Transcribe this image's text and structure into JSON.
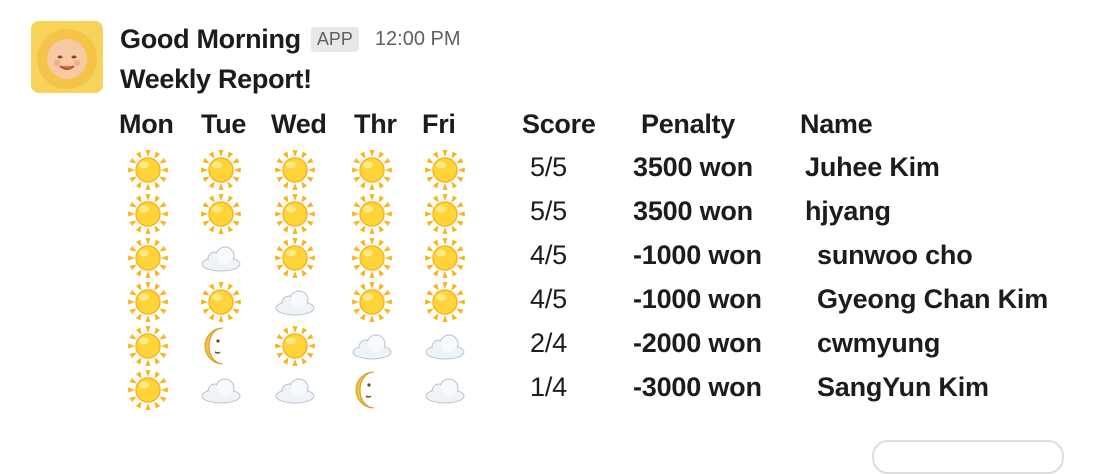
{
  "message": {
    "sender": "Good Morning",
    "badge": "APP",
    "timestamp": "12:00 PM",
    "title": "Weekly Report!"
  },
  "table": {
    "headers": {
      "days": [
        "Mon",
        "Tue",
        "Wed",
        "Thr",
        "Fri"
      ],
      "score": "Score",
      "penalty": "Penalty",
      "name": "Name"
    },
    "rows": [
      {
        "days": [
          "sun-icon",
          "sun-icon",
          "sun-icon",
          "sun-icon",
          "sun-icon"
        ],
        "score": "5/5",
        "penalty": "3500 won",
        "name": "Juhee Kim"
      },
      {
        "days": [
          "sun-icon",
          "sun-icon",
          "sun-icon",
          "sun-icon",
          "sun-icon"
        ],
        "score": "5/5",
        "penalty": "3500 won",
        "name": "hjyang"
      },
      {
        "days": [
          "sun-icon",
          "cloud-icon",
          "sun-icon",
          "sun-icon",
          "sun-icon"
        ],
        "score": "4/5",
        "penalty": "-1000 won",
        "name": "sunwoo cho"
      },
      {
        "days": [
          "sun-icon",
          "sun-icon",
          "cloud-icon",
          "sun-icon",
          "sun-icon"
        ],
        "score": "4/5",
        "penalty": "-1000 won",
        "name": "Gyeong Chan Kim"
      },
      {
        "days": [
          "sun-icon",
          "moon-icon",
          "sun-icon",
          "cloud-icon",
          "cloud-icon"
        ],
        "score": "2/4",
        "penalty": "-2000 won",
        "name": "cwmyung"
      },
      {
        "days": [
          "sun-icon",
          "cloud-icon",
          "cloud-icon",
          "moon-icon",
          "cloud-icon"
        ],
        "score": "1/4",
        "penalty": "-3000 won",
        "name": "SangYun Kim"
      }
    ]
  },
  "colors": {
    "sun": "#f6b51e",
    "sun_center": "#ffd43b",
    "cloud": "#eef3f8",
    "moon": "#f4c144",
    "text": "#1d1c1d",
    "muted": "#616061"
  }
}
